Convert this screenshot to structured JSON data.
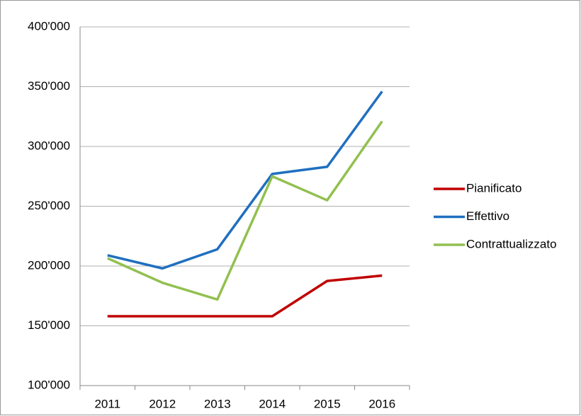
{
  "chart_data": {
    "type": "line",
    "categories": [
      "2011",
      "2012",
      "2013",
      "2014",
      "2015",
      "2016"
    ],
    "series": [
      {
        "name": "Pianificato",
        "color": "#c00000",
        "values": [
          158000,
          158000,
          158000,
          158000,
          187500,
          192000
        ]
      },
      {
        "name": "Effettivo",
        "color": "#1f6fbf",
        "values": [
          209000,
          198000,
          214000,
          277000,
          283000,
          346000
        ]
      },
      {
        "name": "Contrattualizzato",
        "color": "#92c050",
        "values": [
          206500,
          186000,
          172000,
          275000,
          255000,
          321000
        ]
      }
    ],
    "ylim": [
      100000,
      400000
    ],
    "yticks": [
      {
        "value": 100000,
        "label": "100'000"
      },
      {
        "value": 150000,
        "label": "150'000"
      },
      {
        "value": 200000,
        "label": "200'000"
      },
      {
        "value": 250000,
        "label": "250'000"
      },
      {
        "value": 300000,
        "label": "300'000"
      },
      {
        "value": 350000,
        "label": "350'000"
      },
      {
        "value": 400000,
        "label": "400'000"
      }
    ],
    "grid": true,
    "legend": "right"
  }
}
